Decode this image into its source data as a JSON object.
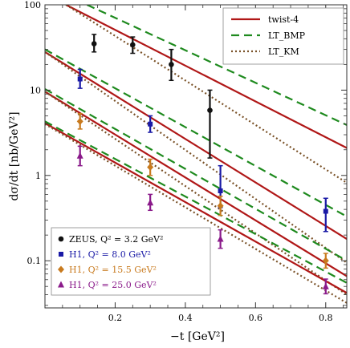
{
  "chart_data": {
    "type": "scatter",
    "x_axis": {
      "label": "−t [GeV²]",
      "range": [
        0.0,
        0.86
      ],
      "ticks": [
        0.2,
        0.4,
        0.6,
        0.8
      ],
      "tick_labels": [
        "0.2",
        "0.4",
        "0.6",
        "0.8"
      ]
    },
    "y_axis": {
      "label": "dσ/dt [nb/GeV²]",
      "scale": "log",
      "range": [
        0.028,
        100
      ],
      "ticks": [
        0.1,
        1,
        10,
        100
      ],
      "tick_labels": [
        "0.1",
        "1",
        "10",
        "100"
      ]
    },
    "line_legend": [
      {
        "label": "twist-4",
        "color": "#b01717",
        "style": "solid"
      },
      {
        "label": "LT_BMP",
        "color": "#1e8a1e",
        "style": "dashed"
      },
      {
        "label": "LT_KM",
        "color": "#7a5228",
        "style": "dotted"
      }
    ],
    "series": [
      {
        "name": "ZEUS, Q² = 3.2 GeV²",
        "marker": "circle",
        "color": "#111111",
        "points": [
          {
            "x": 0.14,
            "y": 35,
            "ylo": 28,
            "yhi": 45
          },
          {
            "x": 0.25,
            "y": 34,
            "ylo": 27,
            "yhi": 42
          },
          {
            "x": 0.36,
            "y": 20,
            "ylo": 13,
            "yhi": 30
          },
          {
            "x": 0.47,
            "y": 5.8,
            "ylo": 1.6,
            "yhi": 10
          }
        ],
        "curves": {
          "twist4": [
            [
              0.06,
              100
            ],
            [
              0.86,
              2.1
            ]
          ],
          "lt_bmp": [
            [
              0.12,
              100
            ],
            [
              0.86,
              3.9
            ]
          ],
          "lt_km": [
            [
              0.06,
              100
            ],
            [
              0.86,
              0.82
            ]
          ]
        }
      },
      {
        "name": "H1, Q² = 8.0 GeV²",
        "marker": "square",
        "color": "#1a1aa6",
        "points": [
          {
            "x": 0.1,
            "y": 13.5,
            "ylo": 10.5,
            "yhi": 17.5
          },
          {
            "x": 0.3,
            "y": 4.0,
            "ylo": 3.2,
            "yhi": 5.0
          },
          {
            "x": 0.5,
            "y": 0.66,
            "ylo": 0.42,
            "yhi": 1.3
          },
          {
            "x": 0.8,
            "y": 0.38,
            "ylo": 0.22,
            "yhi": 0.54
          }
        ],
        "curves": {
          "twist4": [
            [
              0.0,
              28
            ],
            [
              0.86,
              0.18
            ]
          ],
          "lt_bmp": [
            [
              0.0,
              30
            ],
            [
              0.86,
              0.33
            ]
          ],
          "lt_km": [
            [
              0.0,
              28
            ],
            [
              0.86,
              0.095
            ]
          ]
        }
      },
      {
        "name": "H1, Q² = 15.5 GeV²",
        "marker": "diamond",
        "color": "#c87a1e",
        "points": [
          {
            "x": 0.1,
            "y": 4.3,
            "ylo": 3.5,
            "yhi": 5.3
          },
          {
            "x": 0.3,
            "y": 1.25,
            "ylo": 1.0,
            "yhi": 1.55
          },
          {
            "x": 0.5,
            "y": 0.44,
            "ylo": 0.34,
            "yhi": 0.57
          },
          {
            "x": 0.8,
            "y": 0.1,
            "ylo": 0.082,
            "yhi": 0.122
          }
        ],
        "curves": {
          "twist4": [
            [
              0.0,
              9.6
            ],
            [
              0.86,
              0.066
            ]
          ],
          "lt_bmp": [
            [
              0.0,
              10.3
            ],
            [
              0.86,
              0.1
            ]
          ],
          "lt_km": [
            [
              0.0,
              9.6
            ],
            [
              0.86,
              0.04
            ]
          ]
        }
      },
      {
        "name": "H1, Q² = 25.0 GeV²",
        "marker": "triangle",
        "color": "#8a1a8a",
        "points": [
          {
            "x": 0.1,
            "y": 1.7,
            "ylo": 1.3,
            "yhi": 2.2
          },
          {
            "x": 0.3,
            "y": 0.48,
            "ylo": 0.39,
            "yhi": 0.6
          },
          {
            "x": 0.5,
            "y": 0.18,
            "ylo": 0.14,
            "yhi": 0.23
          },
          {
            "x": 0.8,
            "y": 0.05,
            "ylo": 0.041,
            "yhi": 0.061
          }
        ],
        "curves": {
          "twist4": [
            [
              0.0,
              4.1
            ],
            [
              0.86,
              0.042
            ]
          ],
          "lt_bmp": [
            [
              0.0,
              4.3
            ],
            [
              0.86,
              0.055
            ]
          ],
          "lt_km": [
            [
              0.0,
              4.0
            ],
            [
              0.86,
              0.032
            ]
          ]
        }
      }
    ]
  }
}
